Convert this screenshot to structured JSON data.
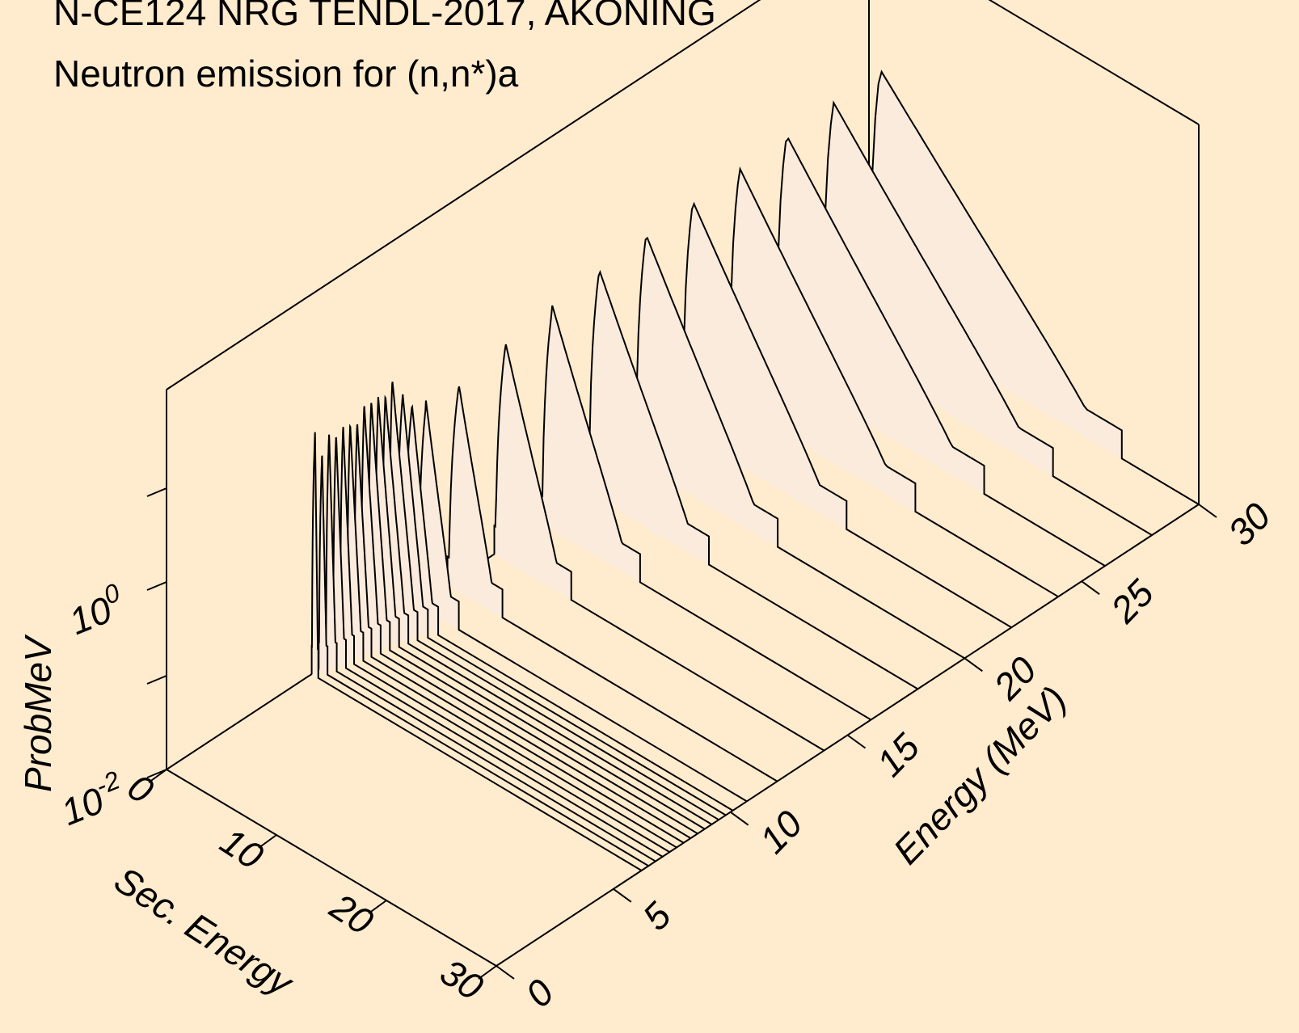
{
  "title_line1": "N-CE124 NRG TENDL-2017, AKONING",
  "title_line2": "Neutron emission for (n,n*)a",
  "colors": {
    "background": "#FFEBCD",
    "fill": "#FAEBDC",
    "line": "#000000"
  },
  "chart_data": {
    "type": "3d-waterfall",
    "title": "N-CE124 NRG TENDL-2017, AKONING",
    "subtitle": "Neutron emission for (n,n*)a",
    "xlabel": "Sec. Energy",
    "ylabel": "Energy (MeV)",
    "zlabel": "ProbMeV",
    "zscale": "log",
    "xlim": [
      0,
      30
    ],
    "ylim": [
      0,
      30
    ],
    "zlim": [
      0.01,
      20
    ],
    "x_ticks": [
      "0",
      "10",
      "20",
      "30"
    ],
    "y_ticks": [
      "0",
      "5",
      "10",
      "15",
      "20",
      "25",
      "30"
    ],
    "z_ticks": [
      {
        "base": "10",
        "exp": "0"
      },
      {
        "base": "10",
        "exp": "-2"
      }
    ],
    "series": [
      {
        "incident_energy": 6.2,
        "peak": 4.0,
        "peak_x": 0.3,
        "x_max": 0.6
      },
      {
        "incident_energy": 6.5,
        "peak": 2.0,
        "peak_x": 0.3,
        "x_max": 0.8
      },
      {
        "incident_energy": 6.8,
        "peak": 3.0,
        "peak_x": 0.3,
        "x_max": 1.0
      },
      {
        "incident_energy": 7.1,
        "peak": 2.5,
        "peak_x": 0.3,
        "x_max": 1.2
      },
      {
        "incident_energy": 7.4,
        "peak": 2.8,
        "peak_x": 0.3,
        "x_max": 1.3
      },
      {
        "incident_energy": 7.7,
        "peak": 2.6,
        "peak_x": 0.3,
        "x_max": 1.5
      },
      {
        "incident_energy": 8.0,
        "peak": 2.4,
        "peak_x": 0.3,
        "x_max": 1.6
      },
      {
        "incident_energy": 8.3,
        "peak": 3.4,
        "peak_x": 0.3,
        "x_max": 1.8
      },
      {
        "incident_energy": 8.6,
        "peak": 3.3,
        "peak_x": 0.3,
        "x_max": 2.0
      },
      {
        "incident_energy": 8.9,
        "peak": 3.2,
        "peak_x": 0.3,
        "x_max": 2.2
      },
      {
        "incident_energy": 9.2,
        "peak": 3.0,
        "peak_x": 0.3,
        "x_max": 2.4
      },
      {
        "incident_energy": 9.5,
        "peak": 4.0,
        "peak_x": 0.3,
        "x_max": 2.6
      },
      {
        "incident_energy": 9.8,
        "peak": 2.6,
        "peak_x": 0.6,
        "x_max": 2.9
      },
      {
        "incident_energy": 10.1,
        "peak": 1.8,
        "peak_x": 0.8,
        "x_max": 3.2
      },
      {
        "incident_energy": 10.7,
        "peak": 1.5,
        "peak_x": 0.8,
        "x_max": 3.8
      },
      {
        "incident_energy": 12.0,
        "peak": 1.45,
        "peak_x": 1.0,
        "x_max": 5.0
      },
      {
        "incident_energy": 14.0,
        "peak": 1.9,
        "peak_x": 1.0,
        "x_max": 7.0
      },
      {
        "incident_energy": 16.0,
        "peak": 2.25,
        "peak_x": 1.0,
        "x_max": 9.0
      },
      {
        "incident_energy": 18.0,
        "peak": 2.6,
        "peak_x": 1.0,
        "x_max": 11.0
      },
      {
        "incident_energy": 20.0,
        "peak": 2.9,
        "peak_x": 1.0,
        "x_max": 13.0
      },
      {
        "incident_energy": 22.0,
        "peak": 3.1,
        "peak_x": 1.0,
        "x_max": 15.0
      },
      {
        "incident_energy": 24.0,
        "peak": 3.3,
        "peak_x": 1.0,
        "x_max": 17.0
      },
      {
        "incident_energy": 26.0,
        "peak": 3.5,
        "peak_x": 1.0,
        "x_max": 19.0
      },
      {
        "incident_energy": 28.0,
        "peak": 3.7,
        "peak_x": 1.0,
        "x_max": 21.0
      },
      {
        "incident_energy": 30.0,
        "peak": 3.9,
        "peak_x": 1.0,
        "x_max": 23.0
      }
    ]
  }
}
